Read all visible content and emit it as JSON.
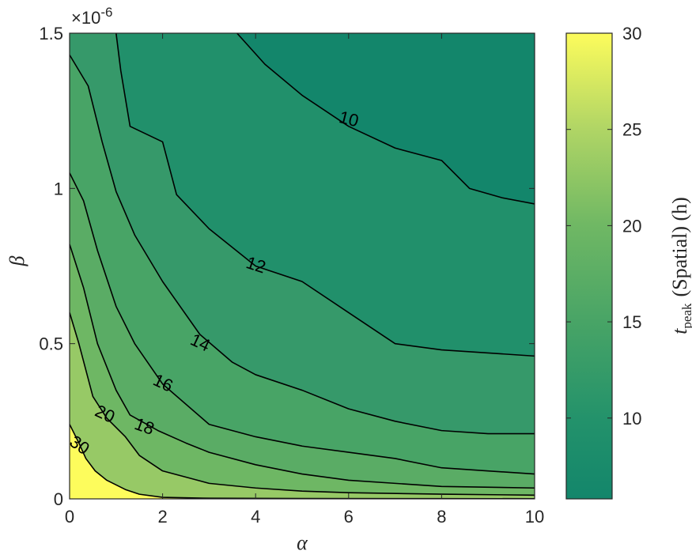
{
  "chart_data": {
    "type": "contour",
    "xlabel": "α",
    "ylabel": "β",
    "x_exponent_label": "×10",
    "y_exponent_label": "-6",
    "xlim": [
      0,
      10
    ],
    "ylim": [
      0,
      1.5
    ],
    "y_scale_factor": 1e-06,
    "x_ticks": [
      0,
      2,
      4,
      6,
      8,
      10
    ],
    "x_tick_labels": [
      "0",
      "2",
      "4",
      "6",
      "8",
      "10"
    ],
    "y_ticks": [
      0,
      0.5,
      1,
      1.5
    ],
    "y_tick_labels": [
      "0",
      "0.5",
      "1",
      "1.5"
    ],
    "colorbar": {
      "label_main": "t",
      "label_sub": "peak",
      "label_rest": "(Spatial) (h)",
      "range": [
        5.8,
        30
      ],
      "ticks": [
        10,
        15,
        20,
        25,
        30
      ],
      "tick_labels": [
        "10",
        "15",
        "20",
        "25",
        "30"
      ],
      "color_low": "#13866b",
      "color_mid": "#66b064",
      "color_high": "#fdfc5c"
    },
    "contour_levels": [
      {
        "level": 10,
        "label": "10",
        "label_at": [
          6.0,
          1.22
        ],
        "label_angle": 14,
        "points": [
          [
            3.6,
            1.5
          ],
          [
            4.2,
            1.4
          ],
          [
            5.0,
            1.3
          ],
          [
            6.0,
            1.2
          ],
          [
            7.0,
            1.13
          ],
          [
            8.0,
            1.09
          ],
          [
            8.6,
            1.0
          ],
          [
            9.3,
            0.97
          ],
          [
            10,
            0.95
          ]
        ]
      },
      {
        "level": 12,
        "label": "12",
        "label_at": [
          4.0,
          0.75
        ],
        "label_angle": 18,
        "points": [
          [
            1.0,
            1.5
          ],
          [
            1.1,
            1.38
          ],
          [
            1.3,
            1.2
          ],
          [
            2.0,
            1.15
          ],
          [
            2.3,
            0.98
          ],
          [
            3.0,
            0.87
          ],
          [
            4.0,
            0.75
          ],
          [
            5.0,
            0.7
          ],
          [
            6.0,
            0.6
          ],
          [
            7.0,
            0.5
          ],
          [
            8.0,
            0.48
          ],
          [
            10,
            0.46
          ]
        ]
      },
      {
        "level": 14,
        "label": "14",
        "label_at": [
          2.8,
          0.5
        ],
        "label_angle": 25,
        "points": [
          [
            0.0,
            1.43
          ],
          [
            0.4,
            1.33
          ],
          [
            0.7,
            1.15
          ],
          [
            1.0,
            0.99
          ],
          [
            1.4,
            0.85
          ],
          [
            2.0,
            0.7
          ],
          [
            2.8,
            0.53
          ],
          [
            3.5,
            0.44
          ],
          [
            4.0,
            0.4
          ],
          [
            5.0,
            0.35
          ],
          [
            6.0,
            0.29
          ],
          [
            7.0,
            0.25
          ],
          [
            8.0,
            0.22
          ],
          [
            9.0,
            0.21
          ],
          [
            10,
            0.21
          ]
        ]
      },
      {
        "level": 16,
        "label": "16",
        "label_at": [
          2.0,
          0.37
        ],
        "label_angle": 25,
        "points": [
          [
            0.0,
            1.05
          ],
          [
            0.3,
            0.96
          ],
          [
            0.6,
            0.8
          ],
          [
            1.0,
            0.62
          ],
          [
            1.4,
            0.5
          ],
          [
            2.0,
            0.37
          ],
          [
            3.0,
            0.24
          ],
          [
            4.0,
            0.2
          ],
          [
            5.0,
            0.17
          ],
          [
            6.0,
            0.15
          ],
          [
            7.0,
            0.13
          ],
          [
            8.0,
            0.1
          ],
          [
            9.0,
            0.09
          ],
          [
            10,
            0.08
          ]
        ]
      },
      {
        "level": 18,
        "label": "18",
        "label_at": [
          1.6,
          0.23
        ],
        "label_angle": 20,
        "points": [
          [
            0.0,
            0.82
          ],
          [
            0.3,
            0.68
          ],
          [
            0.6,
            0.5
          ],
          [
            1.0,
            0.35
          ],
          [
            1.3,
            0.27
          ],
          [
            1.9,
            0.22
          ],
          [
            2.5,
            0.18
          ],
          [
            3.0,
            0.15
          ],
          [
            4.0,
            0.11
          ],
          [
            5.0,
            0.08
          ],
          [
            6.0,
            0.06
          ],
          [
            7.0,
            0.05
          ],
          [
            8.0,
            0.04
          ],
          [
            10,
            0.035
          ]
        ]
      },
      {
        "level": 20,
        "label": "20",
        "label_at": [
          0.75,
          0.27
        ],
        "label_angle": 25,
        "points": [
          [
            0.0,
            0.6
          ],
          [
            0.2,
            0.5
          ],
          [
            0.5,
            0.33
          ],
          [
            0.8,
            0.26
          ],
          [
            1.2,
            0.2
          ],
          [
            1.5,
            0.14
          ],
          [
            2.0,
            0.09
          ],
          [
            3.0,
            0.05
          ],
          [
            4.0,
            0.035
          ],
          [
            5.0,
            0.025
          ],
          [
            6.0,
            0.02
          ],
          [
            8.0,
            0.015
          ],
          [
            10,
            0.012
          ]
        ]
      },
      {
        "level": 30,
        "label": "30",
        "label_at": [
          0.2,
          0.17
        ],
        "label_angle": 35,
        "points": [
          [
            0.0,
            0.24
          ],
          [
            0.2,
            0.18
          ],
          [
            0.35,
            0.13
          ],
          [
            0.55,
            0.09
          ],
          [
            0.8,
            0.06
          ],
          [
            1.2,
            0.03
          ],
          [
            1.5,
            0.015
          ],
          [
            2.0,
            0.005
          ],
          [
            3.0,
            0.002
          ],
          [
            5.0,
            0.001
          ],
          [
            8.0,
            0.0008
          ],
          [
            10,
            0.0006
          ]
        ]
      }
    ]
  }
}
